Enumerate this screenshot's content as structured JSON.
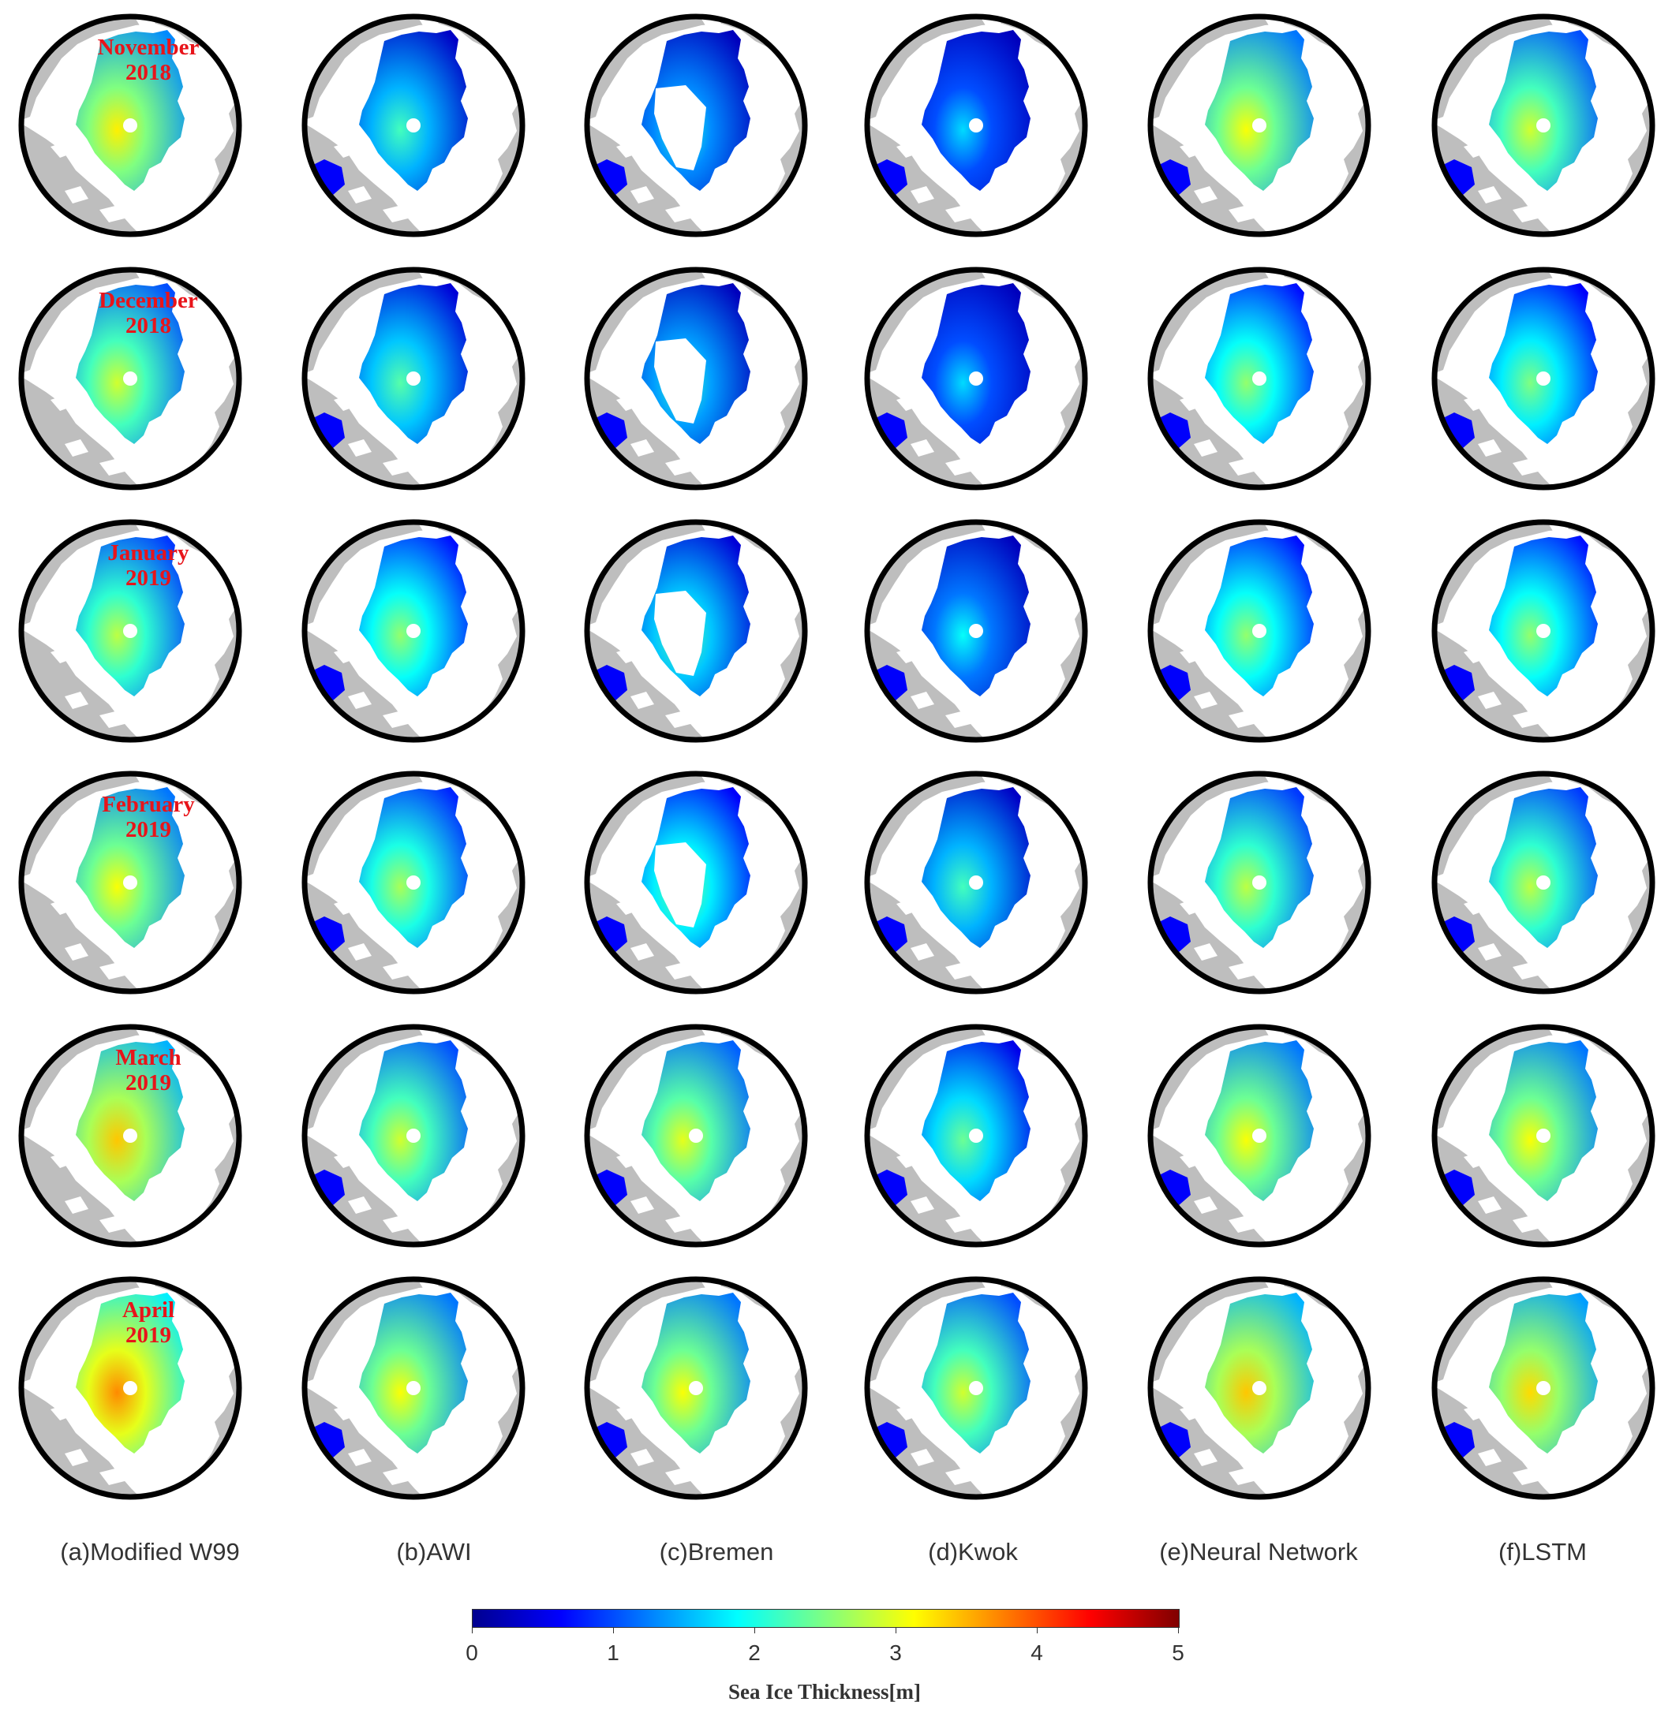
{
  "rows": [
    {
      "month": "November",
      "year": "2018"
    },
    {
      "month": "December",
      "year": "2018"
    },
    {
      "month": "January",
      "year": "2019"
    },
    {
      "month": "February",
      "year": "2019"
    },
    {
      "month": "March",
      "year": "2019"
    },
    {
      "month": "April",
      "year": "2019"
    }
  ],
  "columns": [
    {
      "label": "(a)Modified W99"
    },
    {
      "label": "(b)AWI"
    },
    {
      "label": "(c)Bremen"
    },
    {
      "label": "(d)Kwok"
    },
    {
      "label": "(e)Neural Network"
    },
    {
      "label": "(f)LSTM"
    }
  ],
  "colorbar": {
    "title": "Sea Ice Thickness[m]",
    "min": 0,
    "max": 5,
    "ticks": [
      "0",
      "1",
      "2",
      "3",
      "4",
      "5"
    ],
    "colormap": [
      "#00008f",
      "#0000ff",
      "#0080ff",
      "#00ffff",
      "#80ff80",
      "#ffff00",
      "#ff8000",
      "#ff0000",
      "#800000"
    ]
  },
  "colors": {
    "land": "#bebebe",
    "ocean": "#ffffff",
    "ring": "#000000",
    "month_label": "#e8141a"
  }
}
